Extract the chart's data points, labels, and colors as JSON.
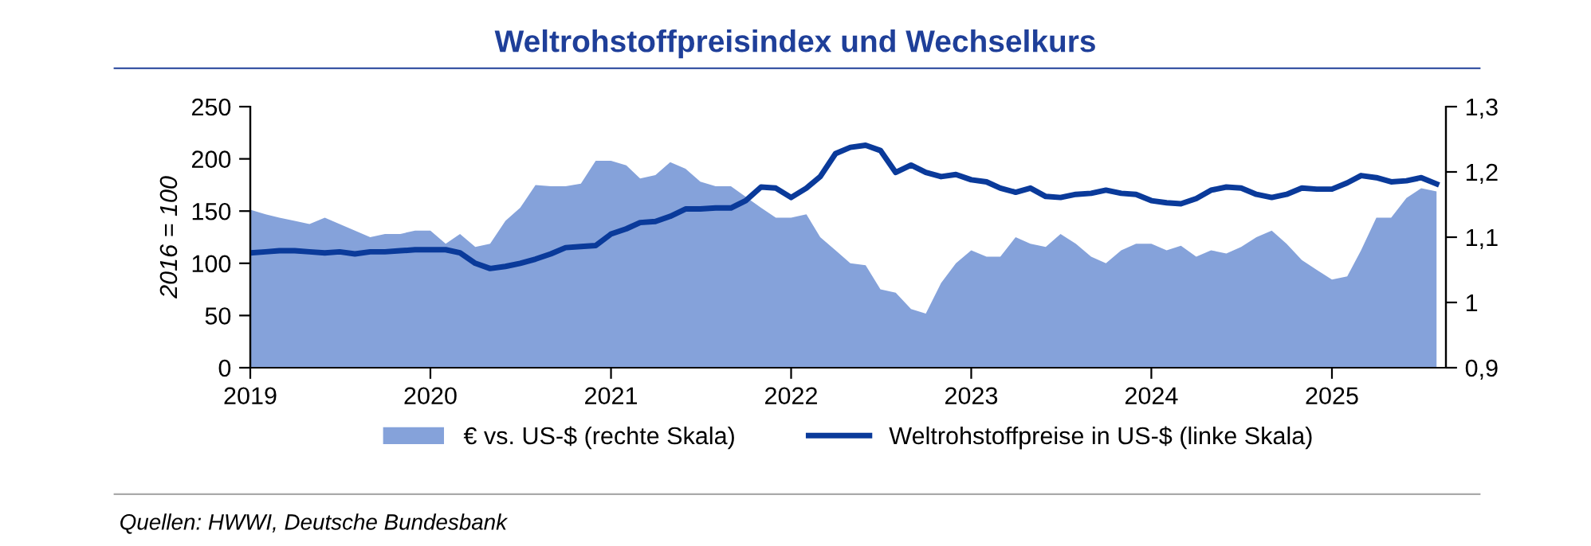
{
  "chart_data": {
    "type": "line",
    "title": "Weltrohstoffpreisindex und Wechselkurs",
    "ylabel": "2016 = 100",
    "x": [
      "2019-01",
      "2019-02",
      "2019-03",
      "2019-04",
      "2019-05",
      "2019-06",
      "2019-07",
      "2019-08",
      "2019-09",
      "2019-10",
      "2019-11",
      "2019-12",
      "2020-01",
      "2020-02",
      "2020-03",
      "2020-04",
      "2020-05",
      "2020-06",
      "2020-07",
      "2020-08",
      "2020-09",
      "2020-10",
      "2020-11",
      "2020-12",
      "2021-01",
      "2021-02",
      "2021-03",
      "2021-04",
      "2021-05",
      "2021-06",
      "2021-07",
      "2021-08",
      "2021-09",
      "2021-10",
      "2021-11",
      "2021-12",
      "2022-01",
      "2022-02",
      "2022-03",
      "2022-04",
      "2022-05",
      "2022-06",
      "2022-07",
      "2022-08",
      "2022-09",
      "2022-10",
      "2022-11",
      "2022-12",
      "2023-01",
      "2023-02",
      "2023-03",
      "2023-04",
      "2023-05",
      "2023-06",
      "2023-07",
      "2023-08",
      "2023-09",
      "2023-10",
      "2023-11",
      "2023-12",
      "2024-01",
      "2024-02",
      "2024-03",
      "2024-04",
      "2024-05",
      "2024-06",
      "2024-07",
      "2024-08",
      "2024-09",
      "2024-10",
      "2024-11",
      "2024-12",
      "2025-01",
      "2025-02",
      "2025-03",
      "2025-04",
      "2025-05",
      "2025-06",
      "2025-07",
      "2025-08"
    ],
    "series": [
      {
        "name": "€ vs. US-$ (rechte Skala)",
        "type": "area",
        "axis": "y2",
        "color": "#85a2da",
        "values": [
          1.142,
          1.135,
          1.13,
          1.125,
          1.12,
          1.13,
          1.12,
          1.11,
          1.1,
          1.105,
          1.105,
          1.11,
          1.11,
          1.09,
          1.105,
          1.085,
          1.09,
          1.125,
          1.145,
          1.18,
          1.178,
          1.178,
          1.182,
          1.217,
          1.217,
          1.21,
          1.19,
          1.195,
          1.215,
          1.205,
          1.185,
          1.178,
          1.178,
          1.162,
          1.145,
          1.13,
          1.13,
          1.135,
          1.1,
          1.08,
          1.06,
          1.057,
          1.02,
          1.015,
          0.99,
          0.983,
          1.03,
          1.06,
          1.08,
          1.07,
          1.07,
          1.1,
          1.09,
          1.085,
          1.105,
          1.09,
          1.07,
          1.06,
          1.08,
          1.09,
          1.09,
          1.08,
          1.087,
          1.07,
          1.08,
          1.075,
          1.085,
          1.1,
          1.11,
          1.09,
          1.065,
          1.05,
          1.035,
          1.04,
          1.08,
          1.13,
          1.13,
          1.16,
          1.175,
          1.17
        ]
      },
      {
        "name": "Weltrohstoffpreise in US-$ (linke Skala)",
        "color": "#0a3a9a",
        "values": [
          110,
          111,
          112,
          112,
          111,
          110,
          111,
          109,
          111,
          111,
          112,
          113,
          113,
          113,
          110,
          100,
          95,
          97,
          100,
          104,
          109,
          115,
          116,
          117,
          128,
          133,
          139,
          140,
          145,
          152,
          152,
          153,
          153,
          160,
          173,
          172,
          163,
          172,
          183,
          205,
          211,
          213,
          208,
          187,
          194,
          187,
          183,
          185,
          180,
          178,
          172,
          168,
          172,
          164,
          163,
          166,
          167,
          170,
          167,
          166,
          160,
          158,
          157,
          162,
          170,
          173,
          172,
          166,
          163,
          166,
          172,
          171,
          171,
          177,
          184,
          182,
          178,
          179,
          182,
          176
        ]
      }
    ],
    "xlim": [
      "2019-01-01",
      "2025-08-20"
    ],
    "xticks": [
      "2019",
      "2020",
      "2021",
      "2022",
      "2023",
      "2024",
      "2025"
    ],
    "ylim": [
      0,
      250
    ],
    "yticks": [
      0,
      50,
      100,
      150,
      200,
      250
    ],
    "y2lim": [
      0.9,
      1.3
    ],
    "y2ticks": [
      {
        "value": 0.9,
        "label": "0,9"
      },
      {
        "value": 1.0,
        "label": "1"
      },
      {
        "value": 1.1,
        "label": "1,1"
      },
      {
        "value": 1.2,
        "label": "1,2"
      },
      {
        "value": 1.3,
        "label": "1,3"
      }
    ],
    "grid": false,
    "legend": "bottom",
    "annotations": [
      "Quellen: HWWI, Deutsche Bundesbank"
    ]
  }
}
